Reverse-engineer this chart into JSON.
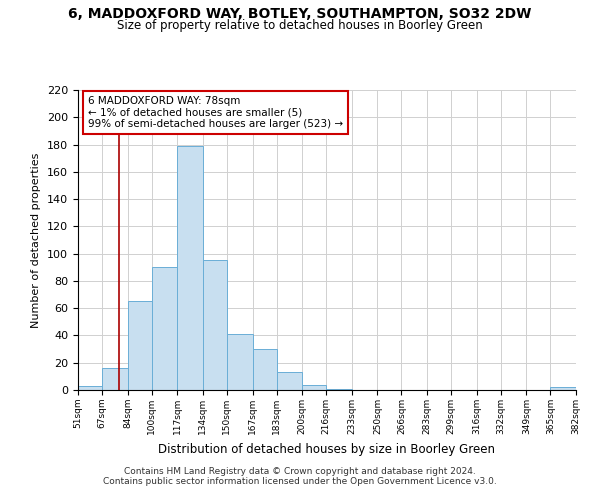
{
  "title": "6, MADDOXFORD WAY, BOTLEY, SOUTHAMPTON, SO32 2DW",
  "subtitle": "Size of property relative to detached houses in Boorley Green",
  "xlabel": "Distribution of detached houses by size in Boorley Green",
  "ylabel": "Number of detached properties",
  "bin_edges": [
    51,
    67,
    84,
    100,
    117,
    134,
    150,
    167,
    183,
    200,
    216,
    233,
    250,
    266,
    283,
    299,
    316,
    332,
    349,
    365,
    382
  ],
  "bar_heights": [
    3,
    16,
    65,
    90,
    179,
    95,
    41,
    30,
    13,
    4,
    1,
    0,
    0,
    0,
    0,
    0,
    0,
    0,
    0,
    2
  ],
  "bar_color": "#c8dff0",
  "bar_edge_color": "#6aaed6",
  "ylim": [
    0,
    220
  ],
  "yticks": [
    0,
    20,
    40,
    60,
    80,
    100,
    120,
    140,
    160,
    180,
    200,
    220
  ],
  "xtick_labels": [
    "51sqm",
    "67sqm",
    "84sqm",
    "100sqm",
    "117sqm",
    "134sqm",
    "150sqm",
    "167sqm",
    "183sqm",
    "200sqm",
    "216sqm",
    "233sqm",
    "250sqm",
    "266sqm",
    "283sqm",
    "299sqm",
    "316sqm",
    "332sqm",
    "349sqm",
    "365sqm",
    "382sqm"
  ],
  "vline_x": 78,
  "vline_color": "#aa0000",
  "annotation_line1": "6 MADDOXFORD WAY: 78sqm",
  "annotation_line2": "← 1% of detached houses are smaller (5)",
  "annotation_line3": "99% of semi-detached houses are larger (523) →",
  "footer_line1": "Contains HM Land Registry data © Crown copyright and database right 2024.",
  "footer_line2": "Contains public sector information licensed under the Open Government Licence v3.0.",
  "background_color": "#ffffff",
  "grid_color": "#d0d0d0"
}
